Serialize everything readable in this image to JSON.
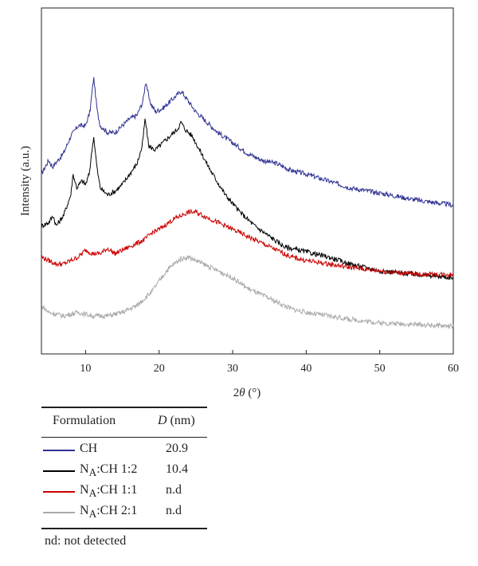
{
  "chart_data": {
    "type": "line",
    "xlabel_prefix": "2",
    "xlabel_symbol": "θ",
    "xlabel_suffix": " (°)",
    "ylabel": "Intensity (a.u.)",
    "xlim": [
      4,
      60
    ],
    "ylim": [
      0,
      100
    ],
    "x_ticks": [
      10,
      20,
      30,
      40,
      50,
      60
    ],
    "series": [
      {
        "name": "CH",
        "color": "#2e3192",
        "points": [
          [
            4,
            52
          ],
          [
            5,
            56
          ],
          [
            5.5,
            54
          ],
          [
            7,
            58
          ],
          [
            8,
            63
          ],
          [
            9,
            66
          ],
          [
            10,
            66
          ],
          [
            10.6,
            70
          ],
          [
            11.1,
            80
          ],
          [
            11.6,
            70
          ],
          [
            12,
            66
          ],
          [
            13,
            64
          ],
          [
            14,
            64
          ],
          [
            15,
            66
          ],
          [
            16,
            68
          ],
          [
            17,
            69
          ],
          [
            17.8,
            73
          ],
          [
            18.2,
            79
          ],
          [
            18.7,
            73
          ],
          [
            19.5,
            70
          ],
          [
            20.5,
            71
          ],
          [
            21.5,
            73
          ],
          [
            22.5,
            75
          ],
          [
            23,
            76
          ],
          [
            24,
            73
          ],
          [
            25,
            70
          ],
          [
            26,
            68
          ],
          [
            27,
            66
          ],
          [
            28,
            64
          ],
          [
            30,
            61
          ],
          [
            32,
            58
          ],
          [
            34,
            56
          ],
          [
            36,
            55
          ],
          [
            38,
            53
          ],
          [
            40,
            52
          ],
          [
            43,
            50
          ],
          [
            46,
            48
          ],
          [
            50,
            46.5
          ],
          [
            55,
            44.5
          ],
          [
            60,
            43
          ]
        ]
      },
      {
        "name": "NA:CH 1:2",
        "color": "#000000",
        "points": [
          [
            4,
            37
          ],
          [
            5,
            38
          ],
          [
            5.6,
            40
          ],
          [
            6,
            37
          ],
          [
            7,
            40
          ],
          [
            8,
            46
          ],
          [
            8.3,
            52
          ],
          [
            8.8,
            48
          ],
          [
            9.5,
            50
          ],
          [
            10,
            49
          ],
          [
            10.5,
            52
          ],
          [
            11.1,
            63
          ],
          [
            11.6,
            53
          ],
          [
            12,
            48
          ],
          [
            13,
            46
          ],
          [
            14,
            47
          ],
          [
            15,
            49
          ],
          [
            16,
            52
          ],
          [
            17,
            55
          ],
          [
            17.7,
            60
          ],
          [
            18.1,
            68
          ],
          [
            18.6,
            60
          ],
          [
            19.5,
            59
          ],
          [
            20.5,
            61
          ],
          [
            21.5,
            63
          ],
          [
            22.5,
            65
          ],
          [
            23,
            67
          ],
          [
            23.5,
            65
          ],
          [
            24.5,
            63
          ],
          [
            25.5,
            59
          ],
          [
            27,
            53
          ],
          [
            29,
            46
          ],
          [
            31,
            41
          ],
          [
            33,
            37
          ],
          [
            35,
            34
          ],
          [
            37,
            31
          ],
          [
            40,
            29.5
          ],
          [
            43,
            28
          ],
          [
            46,
            26
          ],
          [
            50,
            24
          ],
          [
            55,
            23
          ],
          [
            60,
            22
          ]
        ]
      },
      {
        "name": "NA:CH 1:1",
        "color": "#cc0000",
        "points": [
          [
            4,
            28
          ],
          [
            5,
            27
          ],
          [
            6,
            26
          ],
          [
            7,
            26
          ],
          [
            8,
            27
          ],
          [
            9,
            28
          ],
          [
            10,
            30
          ],
          [
            11,
            29
          ],
          [
            12,
            29
          ],
          [
            13,
            30.5
          ],
          [
            14,
            29
          ],
          [
            15,
            30
          ],
          [
            16,
            31
          ],
          [
            17,
            32
          ],
          [
            18,
            33
          ],
          [
            19,
            35
          ],
          [
            20,
            36
          ],
          [
            21,
            37.5
          ],
          [
            22,
            39
          ],
          [
            23,
            40
          ],
          [
            24,
            41
          ],
          [
            25,
            41
          ],
          [
            26,
            40
          ],
          [
            27,
            39
          ],
          [
            28,
            38
          ],
          [
            30,
            36
          ],
          [
            32,
            34
          ],
          [
            34,
            32
          ],
          [
            36,
            30
          ],
          [
            38,
            28
          ],
          [
            40,
            27
          ],
          [
            43,
            26
          ],
          [
            46,
            25
          ],
          [
            50,
            24
          ],
          [
            55,
            23
          ],
          [
            60,
            23
          ]
        ]
      },
      {
        "name": "NA:CH 2:1",
        "color": "#a7a9ac",
        "points": [
          [
            4,
            14
          ],
          [
            5,
            12
          ],
          [
            7,
            11
          ],
          [
            9,
            12
          ],
          [
            11,
            11
          ],
          [
            13,
            11
          ],
          [
            15,
            12
          ],
          [
            17,
            14
          ],
          [
            18,
            16
          ],
          [
            19,
            18
          ],
          [
            20,
            21
          ],
          [
            21,
            24
          ],
          [
            22,
            26
          ],
          [
            23,
            27.5
          ],
          [
            24,
            28
          ],
          [
            25,
            27
          ],
          [
            26,
            26
          ],
          [
            27,
            25
          ],
          [
            28,
            24
          ],
          [
            30,
            22
          ],
          [
            32,
            19
          ],
          [
            34,
            17
          ],
          [
            36,
            15
          ],
          [
            38,
            13
          ],
          [
            40,
            12
          ],
          [
            43,
            11
          ],
          [
            46,
            10
          ],
          [
            50,
            9
          ],
          [
            55,
            8.5
          ],
          [
            60,
            8
          ]
        ]
      }
    ]
  },
  "legend": {
    "header_label": "Formulation",
    "header_d_symbol": "D",
    "header_d_unit": " (nm)",
    "rows": [
      {
        "prefix": "CH",
        "sub": "",
        "suffix": "",
        "value": "20.9",
        "color": "#2e3192"
      },
      {
        "prefix": "N",
        "sub": "A",
        "suffix": ":CH 1:2",
        "value": "10.4",
        "color": "#000000"
      },
      {
        "prefix": "N",
        "sub": "A",
        "suffix": ":CH 1:1",
        "value": "n.d",
        "color": "#cc0000"
      },
      {
        "prefix": "N",
        "sub": "A",
        "suffix": ":CH 2:1",
        "value": "n.d",
        "color": "#a7a9ac"
      }
    ],
    "note": "nd: not detected"
  }
}
